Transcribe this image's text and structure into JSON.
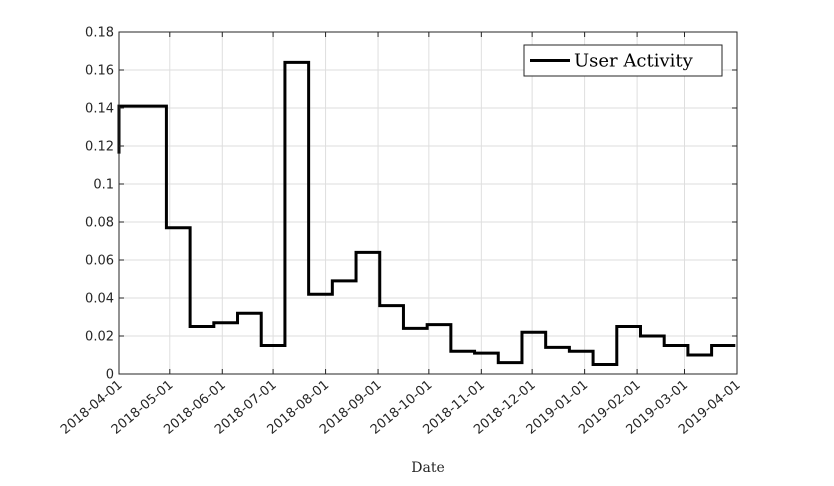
{
  "chart_data": {
    "type": "line",
    "step": true,
    "title": "",
    "xlabel": "Date",
    "ylabel": "",
    "xlim": [
      "2018-04-01",
      "2019-04-01"
    ],
    "ylim": [
      0,
      0.18
    ],
    "grid": true,
    "legend": {
      "placement": "top-right"
    },
    "x_ticks": [
      "2018-04-01",
      "2018-05-01",
      "2018-06-01",
      "2018-07-01",
      "2018-08-01",
      "2018-09-01",
      "2018-10-01",
      "2018-11-01",
      "2018-12-01",
      "2019-01-01",
      "2019-02-01",
      "2019-03-01",
      "2019-04-01"
    ],
    "y_ticks": [
      "0",
      "0.02",
      "0.04",
      "0.06",
      "0.08",
      "0.1",
      "0.12",
      "0.14",
      "0.16",
      "0.18"
    ],
    "series": [
      {
        "name": "User Activity",
        "color": "#000000",
        "x": [
          "2018-04-01",
          "2018-04-15",
          "2018-04-29",
          "2018-05-13",
          "2018-05-27",
          "2018-06-10",
          "2018-06-24",
          "2018-07-08",
          "2018-07-22",
          "2018-08-05",
          "2018-08-19",
          "2018-09-02",
          "2018-09-16",
          "2018-09-30",
          "2018-10-14",
          "2018-10-28",
          "2018-11-11",
          "2018-11-25",
          "2018-12-09",
          "2018-12-23",
          "2019-01-06",
          "2019-01-20",
          "2019-02-03",
          "2019-02-17",
          "2019-03-03",
          "2019-03-17",
          "2019-03-31"
        ],
        "y": [
          0.116,
          0.141,
          0.077,
          0.025,
          0.027,
          0.032,
          0.015,
          0.164,
          0.042,
          0.049,
          0.064,
          0.036,
          0.024,
          0.026,
          0.012,
          0.011,
          0.006,
          0.022,
          0.014,
          0.012,
          0.005,
          0.025,
          0.02,
          0.015,
          0.01,
          0.015,
          0.015
        ]
      }
    ]
  }
}
